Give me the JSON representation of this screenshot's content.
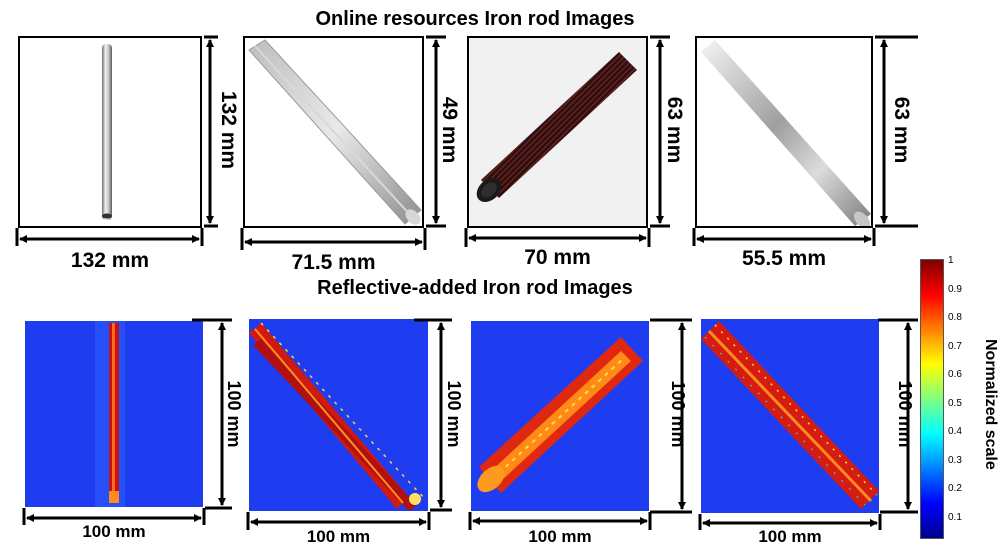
{
  "top_section": {
    "title": "Online resources Iron rod Images",
    "images": [
      {
        "width_label": "132 mm",
        "height_label": "132 mm"
      },
      {
        "width_label": "71.5 mm",
        "height_label": "49 mm"
      },
      {
        "width_label": "70 mm",
        "height_label": "63 mm"
      },
      {
        "width_label": "55.5 mm",
        "height_label": "63 mm"
      }
    ]
  },
  "bottom_section": {
    "title": "Reflective-added Iron rod Images",
    "images": [
      {
        "width_label": "100 mm",
        "height_label": "100 mm"
      },
      {
        "width_label": "100 mm",
        "height_label": "100 mm"
      },
      {
        "width_label": "100 mm",
        "height_label": "100 mm"
      },
      {
        "width_label": "100 mm",
        "height_label": "100 mm"
      }
    ]
  },
  "colorbar": {
    "title": "Normalized scale",
    "ticks": [
      "1",
      "0.9",
      "0.8",
      "0.7",
      "0.6",
      "0.5",
      "0.4",
      "0.3",
      "0.2",
      "0.1"
    ],
    "colors": [
      "#7f0000",
      "#ff0000",
      "#ff8000",
      "#ffff00",
      "#80ff80",
      "#00ffff",
      "#0080ff",
      "#0000ff",
      "#00008f"
    ]
  }
}
